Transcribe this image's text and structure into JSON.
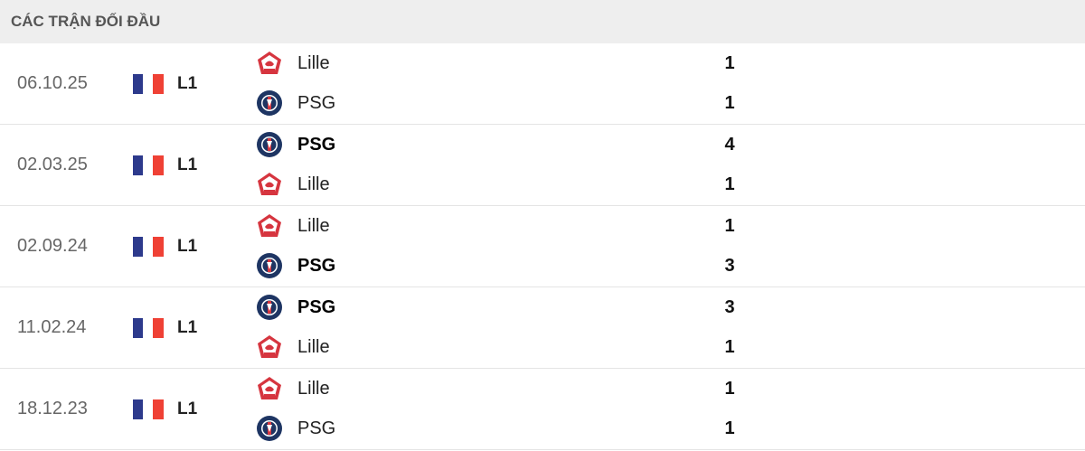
{
  "header": {
    "title": "CÁC TRẬN ĐỐI ĐẦU"
  },
  "colors": {
    "flag_blue": "#2d3a8c",
    "flag_red": "#ef4135",
    "lille_red": "#d6353f",
    "psg_navy": "#1e3563"
  },
  "matches": [
    {
      "date": "06.10.25",
      "league": "L1",
      "teams": [
        {
          "name": "Lille",
          "score": "1",
          "winner": false,
          "logo": "lille-logo"
        },
        {
          "name": "PSG",
          "score": "1",
          "winner": false,
          "logo": "psg-logo"
        }
      ]
    },
    {
      "date": "02.03.25",
      "league": "L1",
      "teams": [
        {
          "name": "PSG",
          "score": "4",
          "winner": true,
          "logo": "psg-logo"
        },
        {
          "name": "Lille",
          "score": "1",
          "winner": false,
          "logo": "lille-logo"
        }
      ]
    },
    {
      "date": "02.09.24",
      "league": "L1",
      "teams": [
        {
          "name": "Lille",
          "score": "1",
          "winner": false,
          "logo": "lille-logo"
        },
        {
          "name": "PSG",
          "score": "3",
          "winner": true,
          "logo": "psg-logo"
        }
      ]
    },
    {
      "date": "11.02.24",
      "league": "L1",
      "teams": [
        {
          "name": "PSG",
          "score": "3",
          "winner": true,
          "logo": "psg-logo"
        },
        {
          "name": "Lille",
          "score": "1",
          "winner": false,
          "logo": "lille-logo"
        }
      ]
    },
    {
      "date": "18.12.23",
      "league": "L1",
      "teams": [
        {
          "name": "Lille",
          "score": "1",
          "winner": false,
          "logo": "lille-logo"
        },
        {
          "name": "PSG",
          "score": "1",
          "winner": false,
          "logo": "psg-logo"
        }
      ]
    }
  ]
}
